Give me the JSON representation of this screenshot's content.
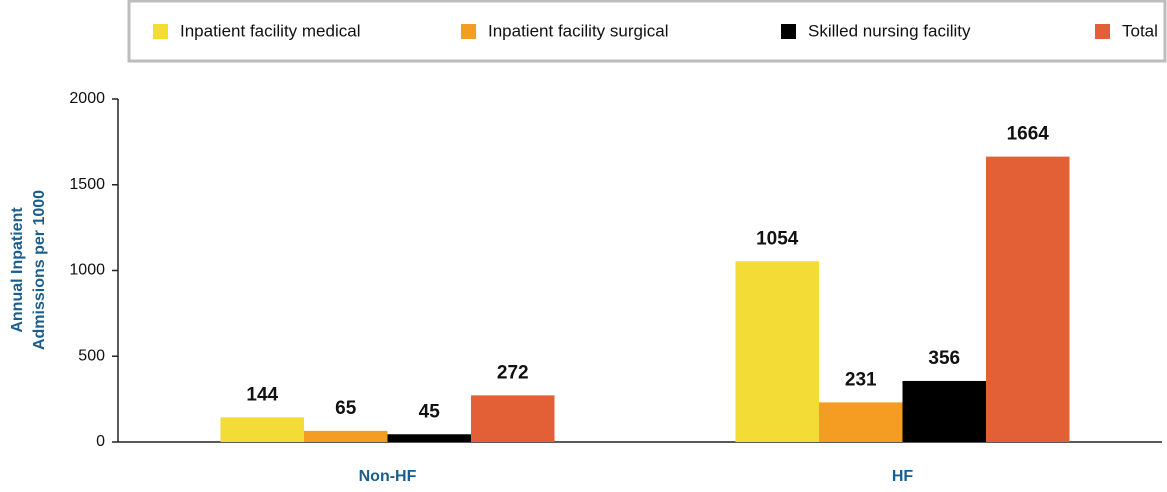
{
  "chart_data": {
    "type": "bar",
    "ylabel": [
      "Annual Inpatient",
      "Admissions per 1000"
    ],
    "categories": [
      "Non-HF",
      "HF"
    ],
    "series": [
      {
        "name": "Inpatient facility medical",
        "color": "#f2dc35",
        "values": [
          144,
          1054
        ]
      },
      {
        "name": "Inpatient facility surgical",
        "color": "#f59c22",
        "values": [
          65,
          231
        ]
      },
      {
        "name": "Skilled nursing facility",
        "color": "#000000",
        "values": [
          45,
          356
        ]
      },
      {
        "name": "Total",
        "color": "#e35f36",
        "values": [
          272,
          1664
        ]
      }
    ],
    "ylim": [
      0,
      2000
    ],
    "yticks": [
      0,
      500,
      1000,
      1500,
      2000
    ],
    "legend": "top"
  }
}
